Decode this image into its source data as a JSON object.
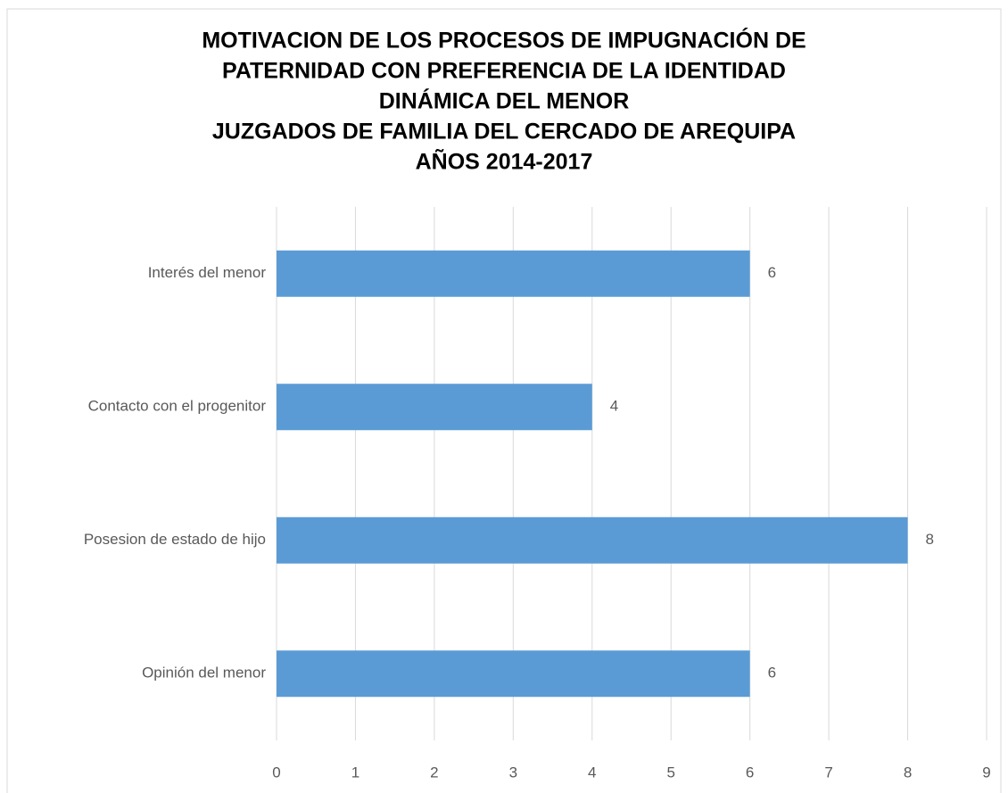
{
  "chart_data": {
    "type": "bar",
    "orientation": "horizontal",
    "title": [
      "MOTIVACION DE LOS PROCESOS DE IMPUGNACIÓN DE",
      "PATERNIDAD CON PREFERENCIA DE LA IDENTIDAD",
      "DINÁMICA DEL MENOR",
      "JUZGADOS DE FAMILIA DEL CERCADO DE AREQUIPA",
      "AÑOS 2014-2017"
    ],
    "categories": [
      "Interés del menor",
      "Contacto con el progenitor",
      "Posesion de estado de hijo",
      "Opinión del menor"
    ],
    "values": [
      6,
      4,
      8,
      6
    ],
    "color": "#5b9bd5",
    "xlim": [
      0,
      9
    ],
    "xticks": [
      0,
      1,
      2,
      3,
      4,
      5,
      6,
      7,
      8,
      9
    ],
    "grid": true
  }
}
